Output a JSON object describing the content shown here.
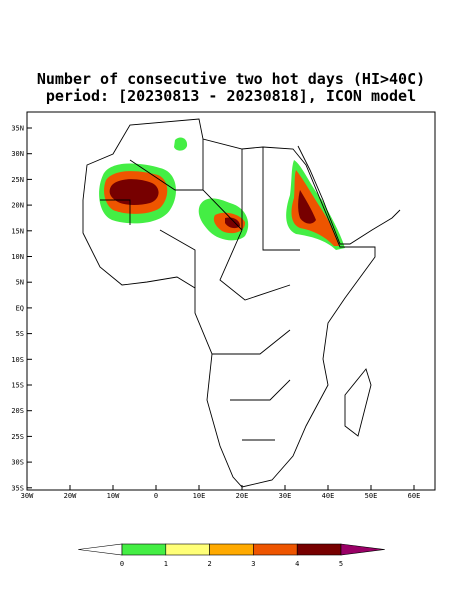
{
  "title": "Number of consecutive two hot days (HI>40C)",
  "subtitle": "period: [20230813 - 20230818], ICON model",
  "map": {
    "lat_labels": [
      "35N",
      "30N",
      "25N",
      "20N",
      "15N",
      "10N",
      "5N",
      "EQ",
      "5S",
      "10S",
      "15S",
      "20S",
      "25S",
      "30S",
      "35S"
    ],
    "lon_labels": [
      "30W",
      "20W",
      "10W",
      "0",
      "10E",
      "20E",
      "30E",
      "40E",
      "50E",
      "60E"
    ]
  },
  "colorbar": {
    "ticks": [
      0,
      1,
      2,
      3,
      4,
      5
    ],
    "colors": [
      "#ffffff",
      "#44ee44",
      "#ffff77",
      "#ffaa00",
      "#ee5500",
      "#770000",
      "#990066"
    ]
  }
}
